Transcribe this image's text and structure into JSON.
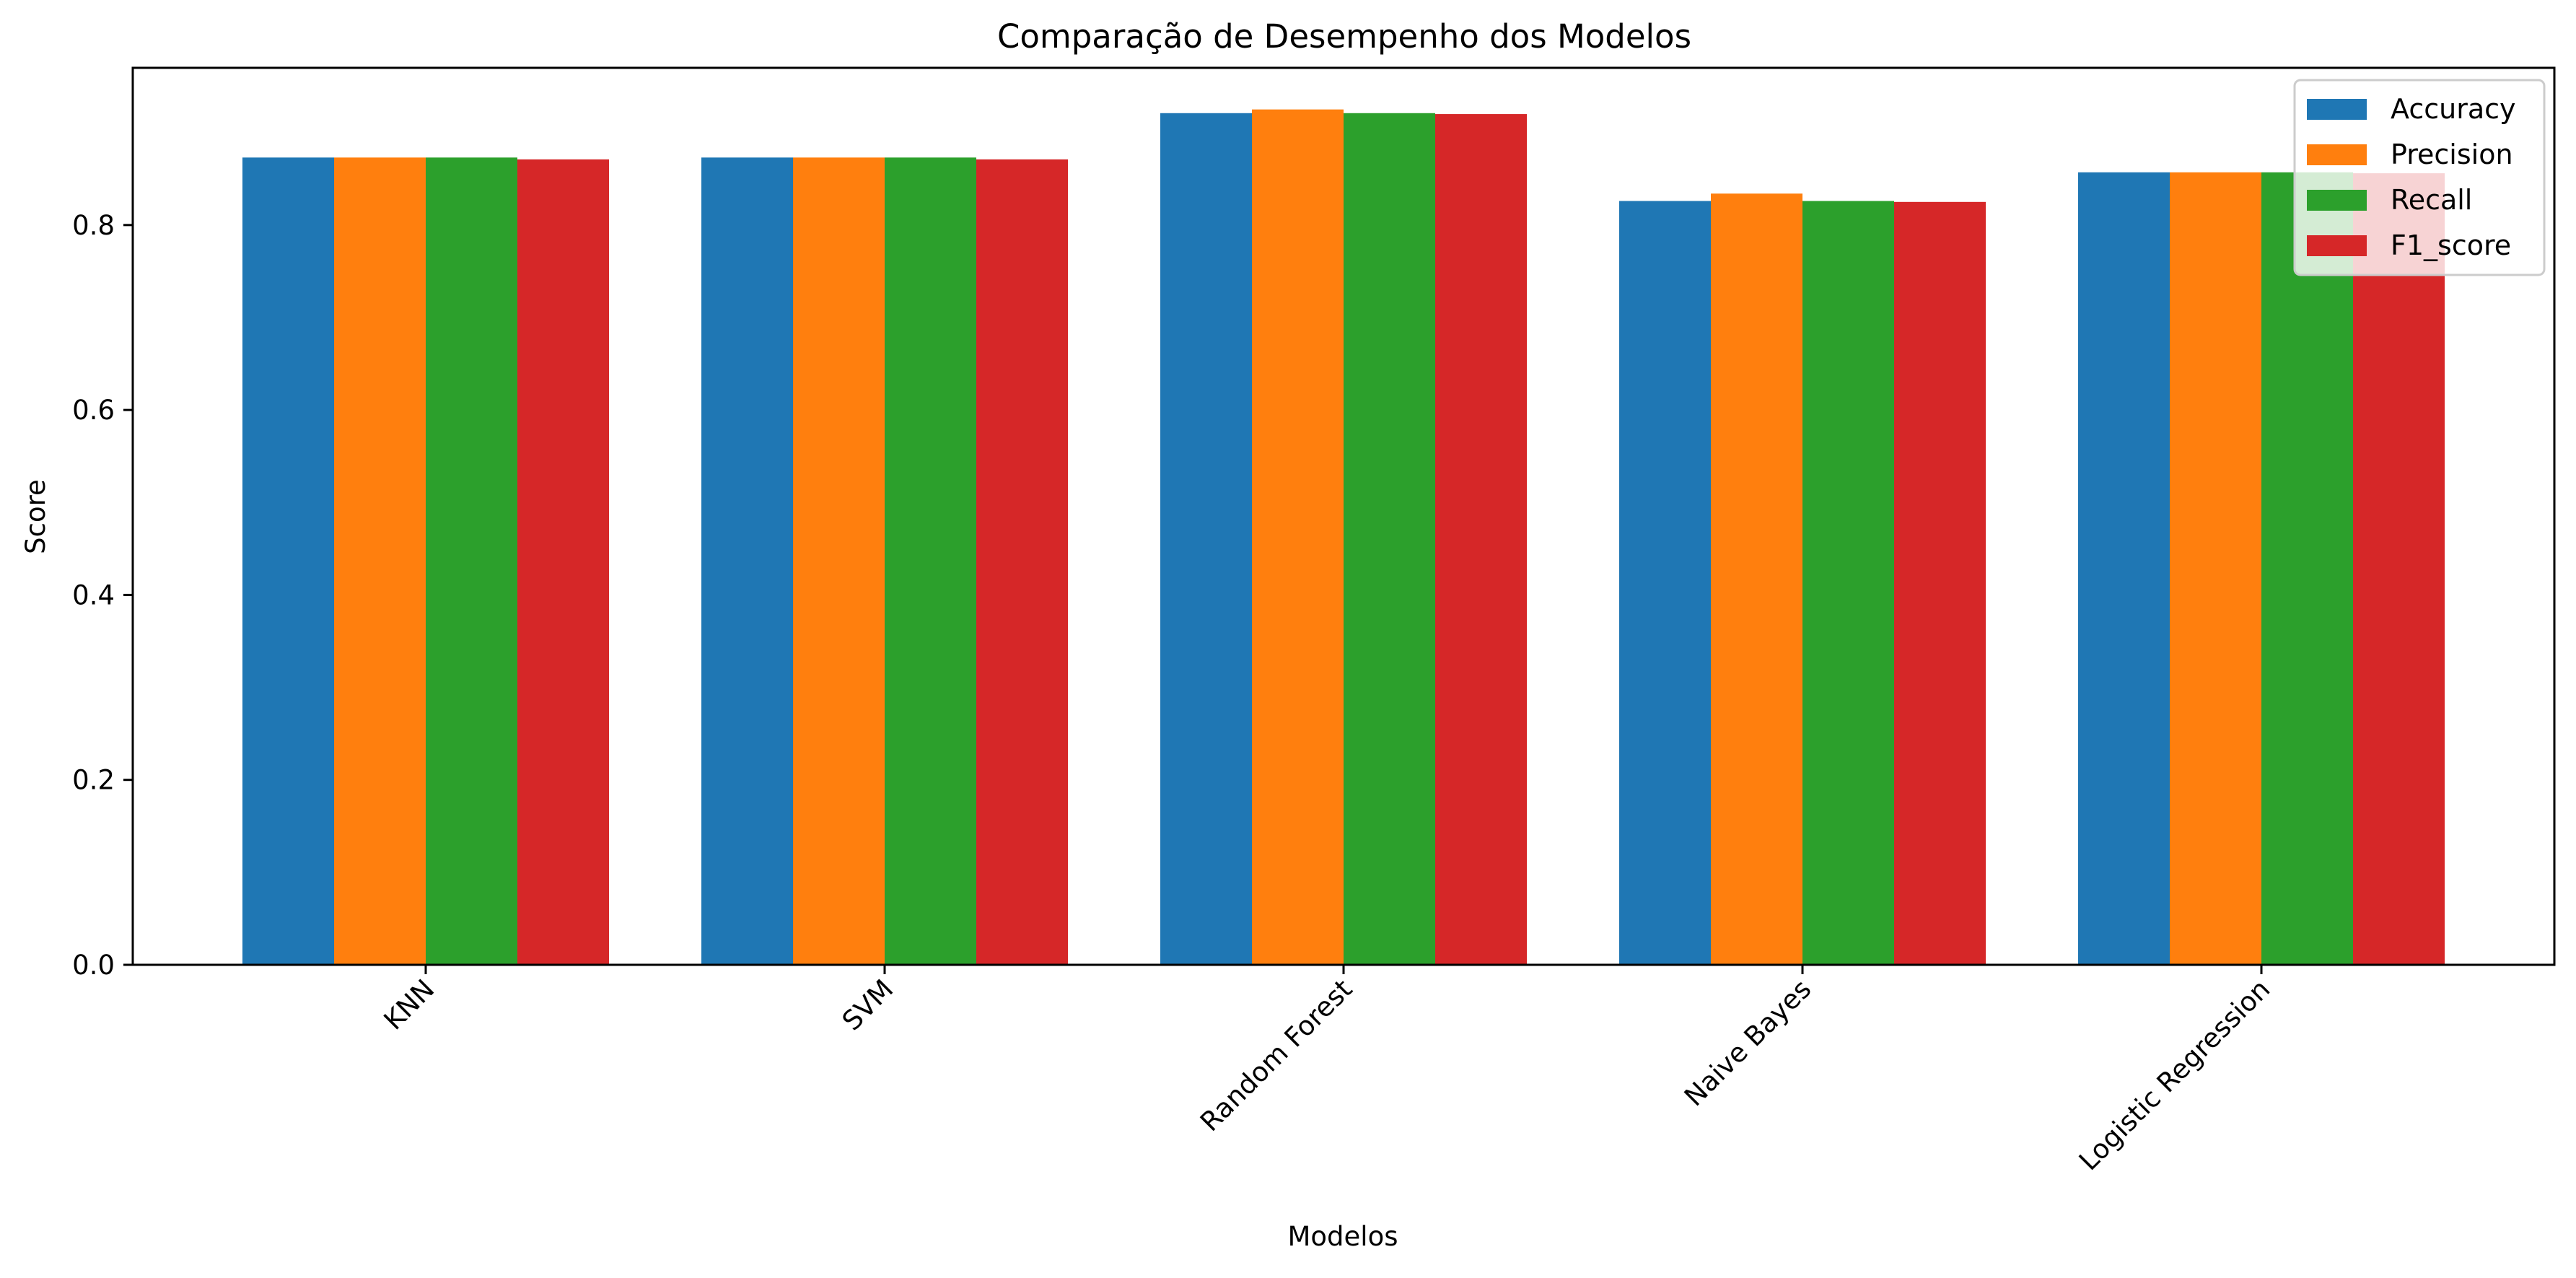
{
  "chart_data": {
    "type": "bar",
    "title": "Comparação de Desempenho dos Modelos",
    "xlabel": "Modelos",
    "ylabel": "Score",
    "categories": [
      "KNN",
      "SVM",
      "Random Forest",
      "Naive Bayes",
      "Logistic Regression"
    ],
    "series": [
      {
        "name": "Accuracy",
        "color": "#1f77b4",
        "values": [
          0.873,
          0.873,
          0.921,
          0.826,
          0.857
        ]
      },
      {
        "name": "Precision",
        "color": "#ff7f0e",
        "values": [
          0.873,
          0.873,
          0.925,
          0.834,
          0.857
        ]
      },
      {
        "name": "Recall",
        "color": "#2ca02c",
        "values": [
          0.873,
          0.873,
          0.921,
          0.826,
          0.857
        ]
      },
      {
        "name": "F1_score",
        "color": "#d62728",
        "values": [
          0.871,
          0.871,
          0.92,
          0.825,
          0.856
        ]
      }
    ],
    "ylim": [
      0,
      0.97
    ],
    "yticks": [
      0.0,
      0.2,
      0.4,
      0.6,
      0.8
    ],
    "ytick_labels": [
      "0.0",
      "0.2",
      "0.4",
      "0.6",
      "0.8"
    ],
    "xtick_rotation_deg": 45,
    "grid": false,
    "legend_position": "top-right"
  }
}
